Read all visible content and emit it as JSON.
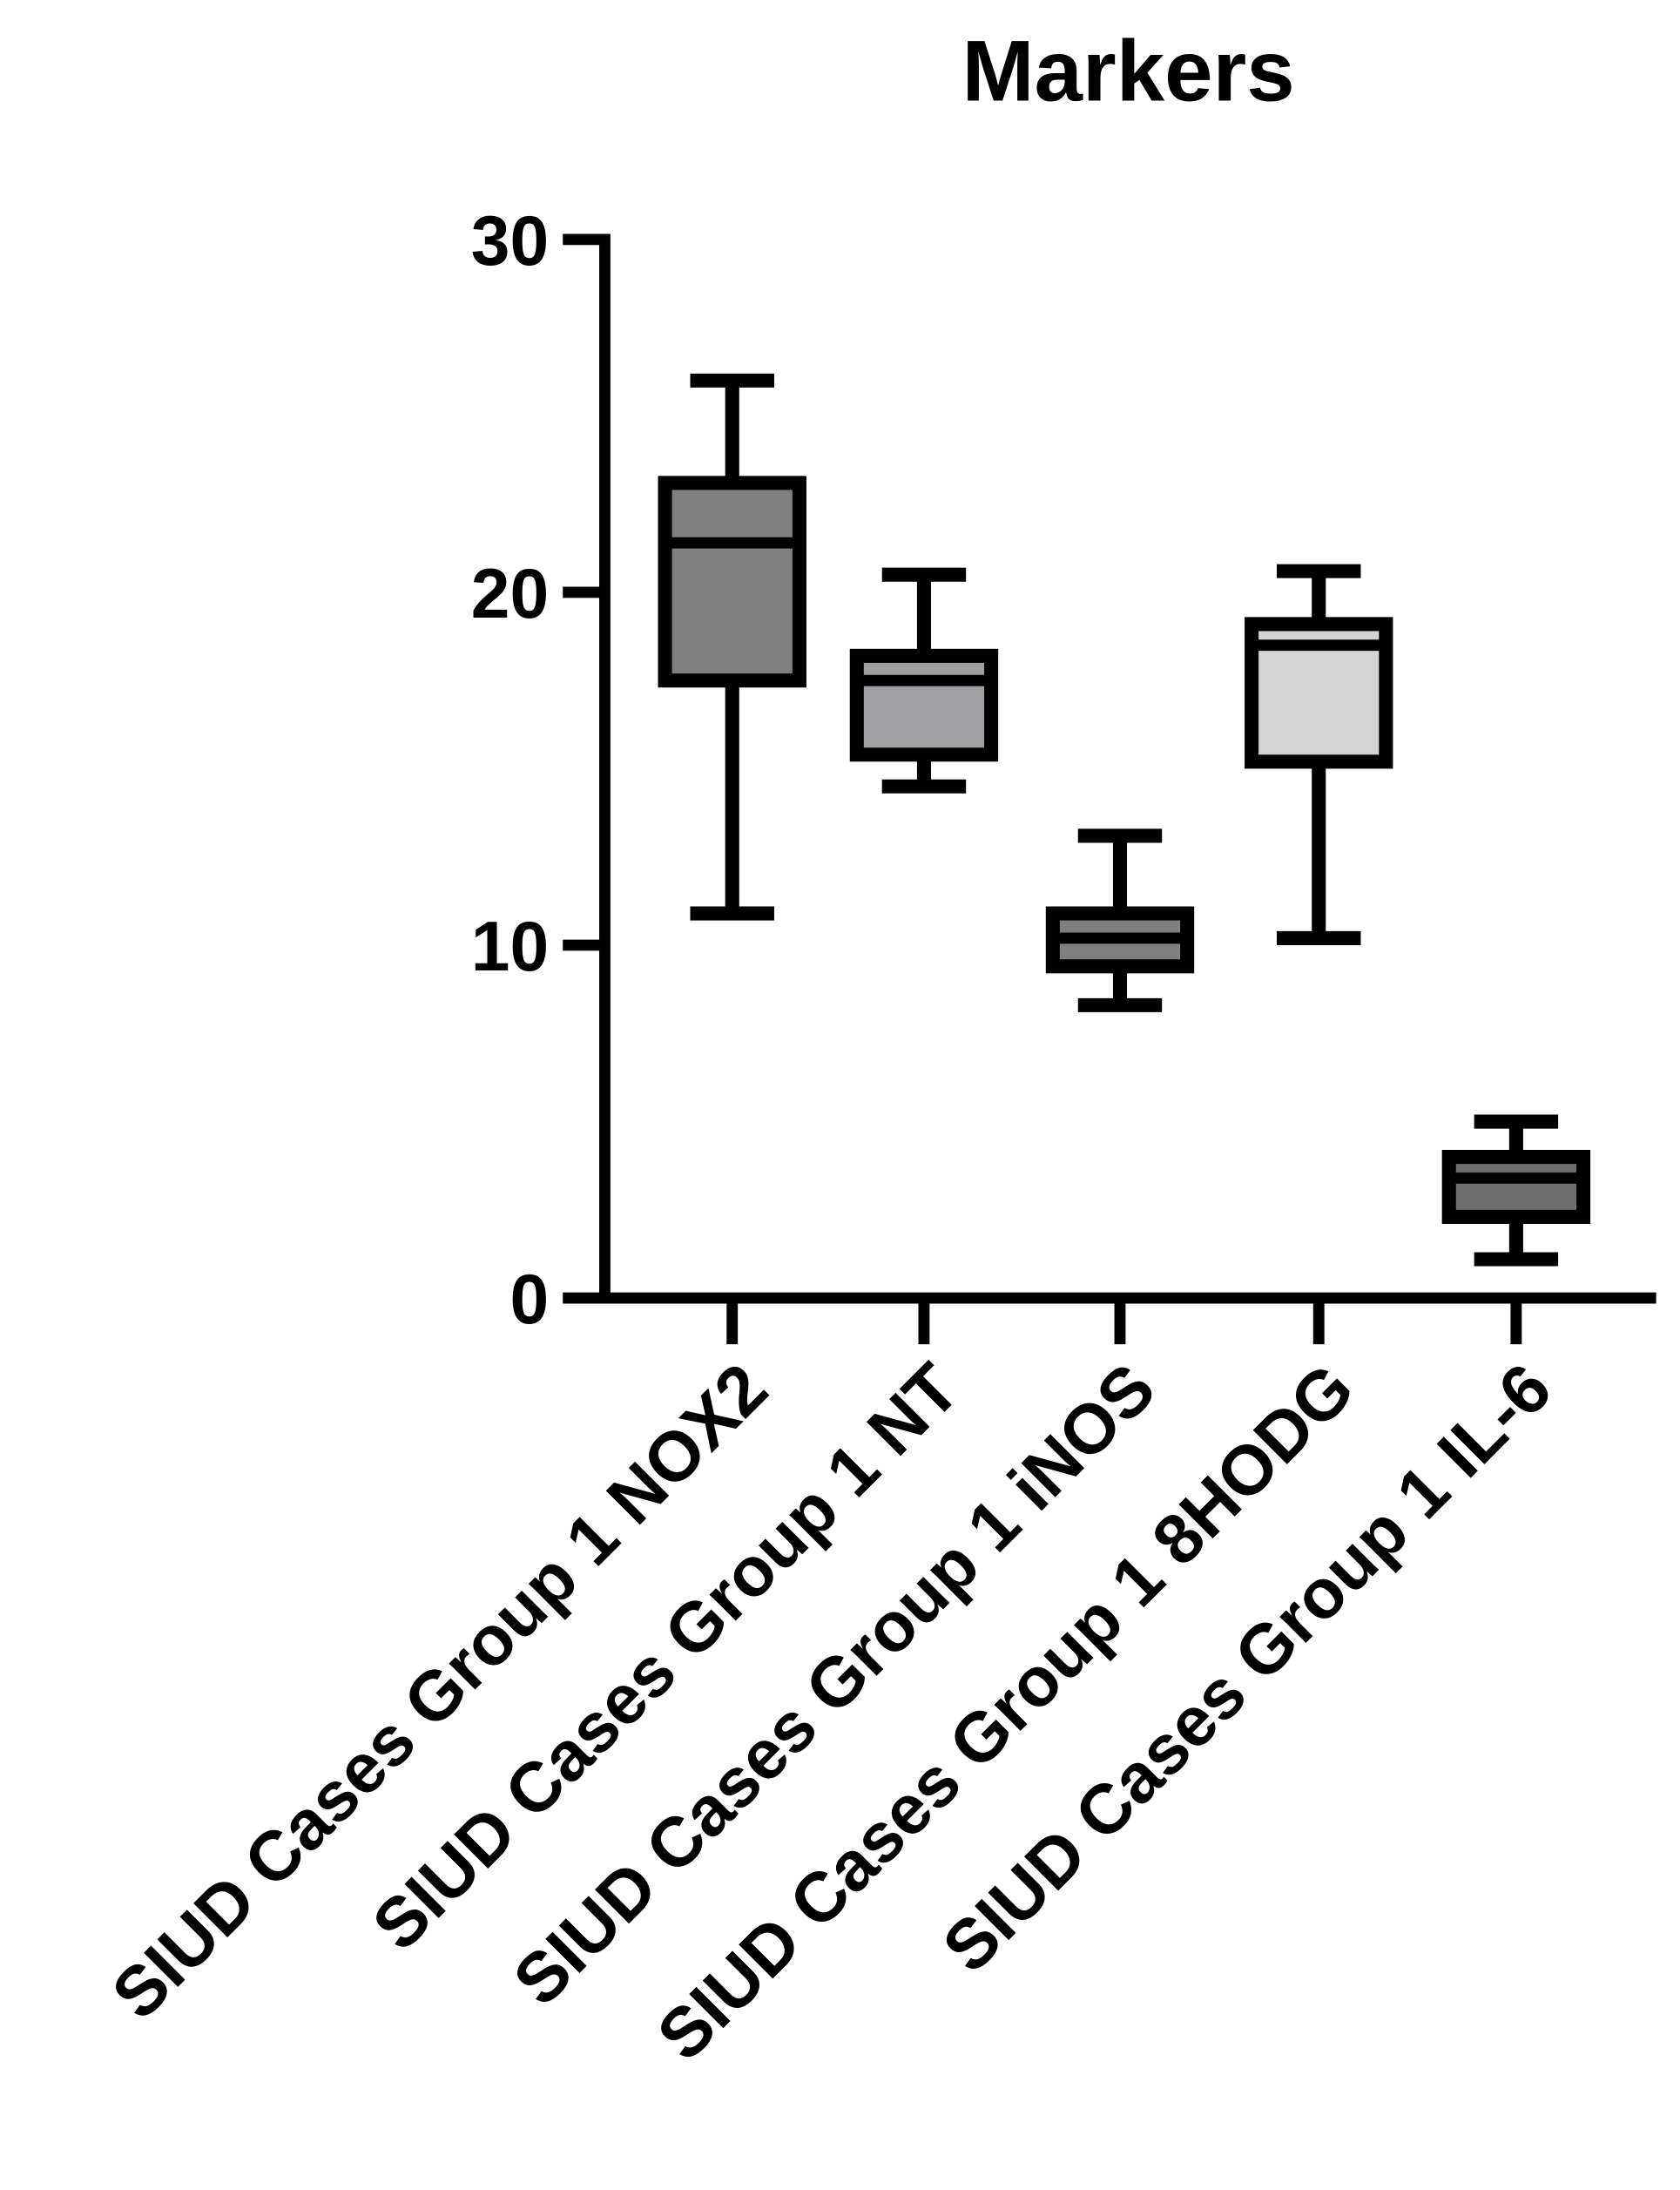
{
  "chart_data": {
    "type": "box",
    "title": "Markers",
    "categories": [
      "SIUD Cases Group 1 NOX2",
      "SIUD Cases Group 1 NT",
      "SIUD Cases Group 1 iNOS",
      "SIUD Cases Group 1 8HODG",
      "SIUD Cases Group 1 IL-6"
    ],
    "min": [
      10.9,
      14.5,
      8.3,
      10.2,
      1.1
    ],
    "q1": [
      17.5,
      15.4,
      9.4,
      15.2,
      2.3
    ],
    "median": [
      21.4,
      17.5,
      10.2,
      18.5,
      3.4
    ],
    "q3": [
      23.1,
      18.2,
      10.9,
      19.1,
      4.0
    ],
    "max": [
      26.0,
      20.5,
      13.1,
      20.6,
      5.0
    ],
    "colors": [
      "#808080",
      "#a0a0a4",
      "#808080",
      "#d4d4d4",
      "#6e6e6e"
    ],
    "ylim": [
      0,
      30
    ],
    "yticks": [
      0,
      10,
      20,
      30
    ]
  }
}
